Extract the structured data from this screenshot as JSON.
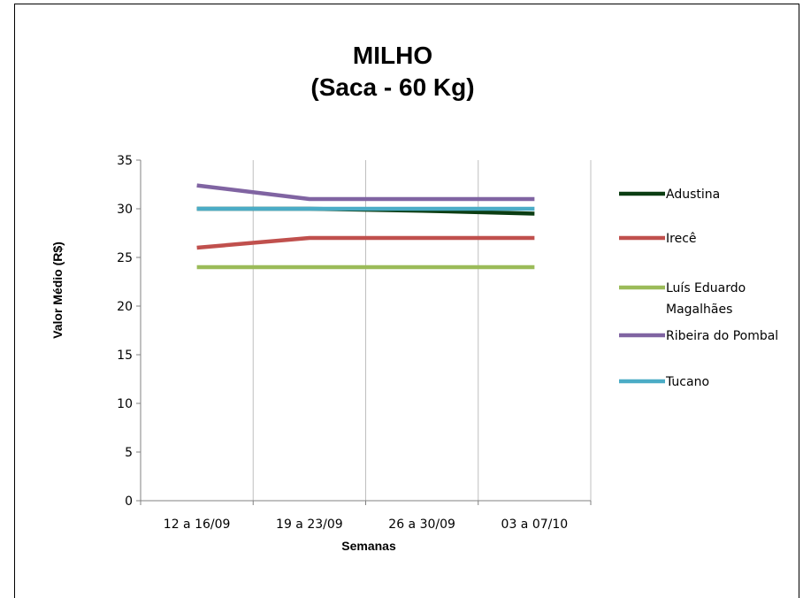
{
  "chart_data": {
    "type": "line",
    "title": [
      "MILHO",
      "(Saca - 60 Kg)"
    ],
    "xlabel": "Semanas",
    "ylabel": "Valor Médio (R$)",
    "categories": [
      "12 a 16/09",
      "19 a 23/09",
      "26 a 30/09",
      "03 a 07/10"
    ],
    "ylim": [
      0,
      35
    ],
    "yticks": [
      0,
      5,
      10,
      15,
      20,
      25,
      30,
      35
    ],
    "grid": "vertical",
    "legend_position": "right",
    "series": [
      {
        "name": "Adustina",
        "color": "#0b3d12",
        "values": [
          30,
          30,
          29.8,
          29.5
        ]
      },
      {
        "name": "Irecê",
        "color": "#c0504d",
        "values": [
          26,
          27,
          27,
          27
        ]
      },
      {
        "name": "Luís Eduardo Magalhães",
        "color": "#9bbb59",
        "values": [
          24,
          24,
          24,
          24
        ]
      },
      {
        "name": "Ribeira do Pombal",
        "color": "#8064a2",
        "values": [
          32.4,
          31,
          31,
          31
        ]
      },
      {
        "name": "Tucano",
        "color": "#4bacc6",
        "values": [
          30,
          30,
          30,
          30
        ]
      }
    ]
  }
}
